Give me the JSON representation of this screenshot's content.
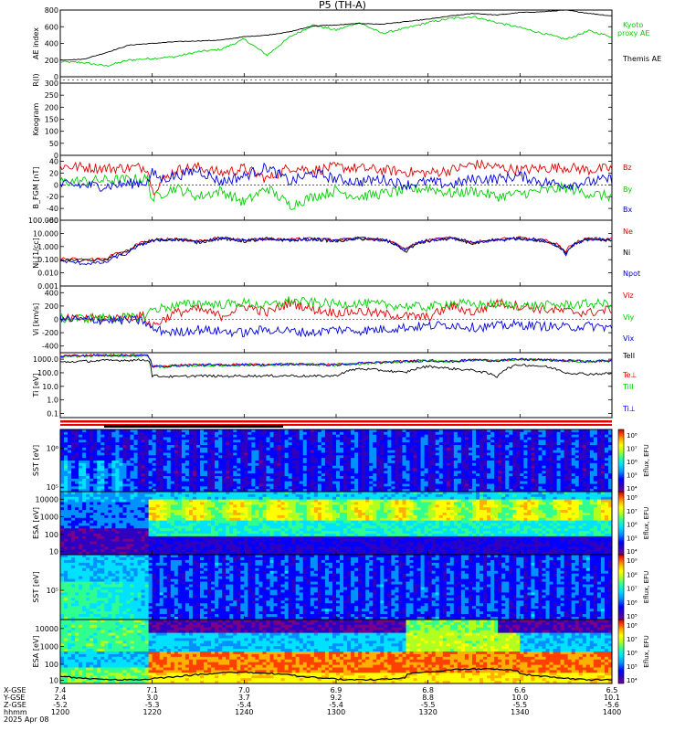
{
  "title": "P5 (TH-A)",
  "colors": {
    "black": "#000000",
    "green": "#00d000",
    "red": "#e00000",
    "blue": "#0000e0",
    "cmap": [
      "#7a008a",
      "#3000c0",
      "#0000ff",
      "#0090ff",
      "#00e0ff",
      "#30ff90",
      "#b0ff20",
      "#ffff00",
      "#ffb000",
      "#ff4000",
      "#c00000"
    ]
  },
  "chart_data": [
    {
      "type": "line",
      "panel": "ae",
      "ylabel": "AE index",
      "ylim": [
        0,
        800
      ],
      "yticks": [
        "800",
        "600",
        "400",
        "200",
        "0"
      ],
      "x_minutes": [
        0,
        5,
        10,
        15,
        20,
        25,
        30,
        35,
        40,
        45,
        50,
        55,
        60,
        65,
        70,
        75,
        80,
        85,
        90,
        95,
        100,
        105,
        110,
        115,
        120
      ],
      "series": [
        {
          "name": "Kyoto proxy AE",
          "color": "green",
          "values": [
            180,
            170,
            130,
            200,
            220,
            240,
            300,
            330,
            450,
            260,
            480,
            620,
            560,
            650,
            520,
            580,
            650,
            700,
            720,
            650,
            590,
            520,
            450,
            550,
            480
          ]
        },
        {
          "name": "Themis AE",
          "color": "black",
          "values": [
            200,
            210,
            290,
            380,
            400,
            420,
            430,
            440,
            480,
            500,
            540,
            610,
            620,
            640,
            630,
            660,
            690,
            730,
            760,
            740,
            770,
            780,
            800,
            760,
            730
          ]
        }
      ]
    },
    {
      "type": "line",
      "panel": "ri",
      "ylabel": "R(I)",
      "ylim": [
        0,
        1
      ],
      "yticks": [
        "1",
        "0"
      ]
    },
    {
      "type": "heatmap",
      "panel": "keo",
      "ylabel": "Keogram",
      "ylim": [
        0,
        300
      ],
      "yticks": [
        "300",
        "250",
        "200",
        "150",
        "100",
        "50",
        "0"
      ]
    },
    {
      "type": "line",
      "panel": "bfgm",
      "ylabel": "B_FGM [nT]",
      "ylim": [
        -60,
        50
      ],
      "yticks": [
        "40",
        "20",
        "0",
        "-20",
        "-40",
        "-60"
      ],
      "x_minutes": [
        0,
        10,
        19,
        20,
        22,
        25,
        30,
        35,
        40,
        45,
        50,
        55,
        60,
        65,
        70,
        75,
        80,
        85,
        90,
        95,
        100,
        105,
        110,
        115,
        120
      ],
      "series": [
        {
          "name": "Bz",
          "color": "red",
          "values": [
            32,
            28,
            30,
            -10,
            5,
            25,
            30,
            20,
            28,
            10,
            30,
            25,
            30,
            28,
            25,
            22,
            20,
            25,
            35,
            30,
            25,
            28,
            30,
            25,
            28
          ]
        },
        {
          "name": "By",
          "color": "green",
          "values": [
            5,
            8,
            10,
            -25,
            -15,
            -5,
            -20,
            -10,
            -30,
            -5,
            -35,
            -20,
            -10,
            -20,
            -15,
            -10,
            -5,
            -15,
            -10,
            -20,
            -15,
            -10,
            -5,
            -15,
            -20
          ]
        },
        {
          "name": "Bx",
          "color": "blue",
          "values": [
            0,
            -2,
            5,
            20,
            10,
            15,
            25,
            5,
            15,
            30,
            5,
            20,
            10,
            5,
            10,
            0,
            5,
            0,
            10,
            10,
            15,
            5,
            0,
            5,
            10
          ]
        }
      ]
    },
    {
      "type": "line",
      "panel": "ni",
      "ylabel": "Ni [1/cc]",
      "yscale": "log",
      "ylim": [
        0.001,
        100
      ],
      "yticks": [
        "100.000",
        "10.000",
        "1.000",
        "0.100",
        "0.010",
        "0.001"
      ],
      "x_minutes": [
        0,
        5,
        10,
        15,
        18,
        20,
        25,
        30,
        35,
        40,
        45,
        50,
        55,
        60,
        65,
        70,
        75,
        80,
        85,
        90,
        95,
        100,
        105,
        110,
        115,
        120
      ],
      "series": [
        {
          "name": "Ne",
          "color": "red",
          "values": [
            0.12,
            0.1,
            0.12,
            0.5,
            2.0,
            3.0,
            4.0,
            2.5,
            4.5,
            3.0,
            4.0,
            3.5,
            4.0,
            3.0,
            4.5,
            3.5,
            0.5,
            3.0,
            4.5,
            2.0,
            3.5,
            4.5,
            3.0,
            0.4,
            4.0,
            3.5
          ]
        },
        {
          "name": "Ni",
          "color": "black",
          "values": [
            0.1,
            0.08,
            0.1,
            0.4,
            1.8,
            2.8,
            3.5,
            2.0,
            4.0,
            2.5,
            3.5,
            3.0,
            3.5,
            2.5,
            4.0,
            3.0,
            0.3,
            2.5,
            4.0,
            1.5,
            3.0,
            4.0,
            2.5,
            0.3,
            3.5,
            3.0
          ]
        },
        {
          "name": "Npot",
          "color": "blue",
          "values": [
            0.08,
            0.05,
            0.06,
            0.3,
            1.5,
            2.5,
            3.8,
            2.2,
            4.2,
            2.8,
            3.8,
            3.2,
            3.8,
            2.8,
            4.2,
            3.2,
            0.4,
            2.8,
            4.2,
            1.8,
            3.2,
            4.2,
            2.8,
            0.2,
            3.8,
            3.2
          ]
        }
      ]
    },
    {
      "type": "line",
      "panel": "vi",
      "ylabel": "Vi [km/s]",
      "ylim": [
        -500,
        500
      ],
      "yticks": [
        "400",
        "200",
        "0",
        "-200",
        "-400"
      ],
      "x_minutes": [
        0,
        10,
        18,
        20,
        25,
        30,
        35,
        40,
        45,
        50,
        55,
        60,
        65,
        70,
        75,
        80,
        85,
        90,
        95,
        100,
        105,
        110,
        115,
        120
      ],
      "series": [
        {
          "name": "Viz",
          "color": "red",
          "values": [
            0,
            20,
            50,
            -100,
            100,
            150,
            50,
            200,
            100,
            250,
            150,
            100,
            120,
            80,
            50,
            30,
            200,
            100,
            250,
            200,
            150,
            120,
            100,
            150
          ]
        },
        {
          "name": "Viy",
          "color": "green",
          "values": [
            10,
            20,
            30,
            150,
            200,
            250,
            220,
            250,
            200,
            280,
            250,
            230,
            240,
            220,
            200,
            180,
            250,
            220,
            230,
            200,
            210,
            220,
            230,
            240
          ]
        },
        {
          "name": "Vix",
          "color": "blue",
          "values": [
            0,
            -10,
            -20,
            -150,
            -200,
            -150,
            -180,
            -200,
            -150,
            -180,
            -200,
            -150,
            -170,
            -150,
            -120,
            -100,
            -80,
            -120,
            -100,
            -80,
            -100,
            -120,
            -100,
            -120
          ]
        }
      ]
    },
    {
      "type": "line",
      "panel": "ti",
      "ylabel": "Ti [eV]",
      "yscale": "log",
      "ylim": [
        0.05,
        3000
      ],
      "yticks": [
        "1000.0",
        "100.0",
        "10.0",
        "1.0",
        "0.1"
      ],
      "x_minutes": [
        0,
        10,
        19,
        20,
        25,
        30,
        35,
        40,
        45,
        50,
        55,
        60,
        65,
        70,
        75,
        80,
        85,
        90,
        95,
        100,
        105,
        110,
        115,
        120
      ],
      "series": [
        {
          "name": "TeII",
          "color": "black",
          "values": [
            600,
            800,
            900,
            60,
            50,
            60,
            55,
            60,
            58,
            62,
            55,
            60,
            200,
            150,
            100,
            300,
            200,
            150,
            50,
            400,
            300,
            100,
            80,
            90
          ]
        },
        {
          "name": "Te⊥",
          "color": "red",
          "values": [
            1800,
            2000,
            2000,
            300,
            350,
            400,
            380,
            420,
            400,
            450,
            420,
            400,
            500,
            600,
            700,
            800,
            700,
            900,
            800,
            1000,
            900,
            800,
            700,
            800
          ]
        },
        {
          "name": "TiII",
          "color": "green",
          "values": [
            1500,
            1800,
            1800,
            250,
            300,
            350,
            330,
            380,
            350,
            400,
            380,
            350,
            450,
            550,
            650,
            750,
            650,
            850,
            750,
            950,
            850,
            750,
            650,
            750
          ]
        },
        {
          "name": "Ti⊥",
          "color": "blue",
          "values": [
            1700,
            1900,
            1900,
            280,
            330,
            380,
            360,
            400,
            380,
            430,
            400,
            380,
            480,
            580,
            680,
            780,
            680,
            880,
            780,
            980,
            880,
            780,
            680,
            780
          ]
        }
      ]
    },
    {
      "type": "heatmap",
      "panel": "sst_i",
      "ylabel": "SST [eV]",
      "yscale": "log",
      "yticks": [
        "10⁶",
        "10⁵"
      ],
      "cbar_label": "Eflux, EFU",
      "cbar_ticks": [
        "10⁸",
        "10⁷",
        "10⁶",
        "10⁵",
        "10⁴"
      ]
    },
    {
      "type": "heatmap",
      "panel": "esa_i",
      "ylabel": "ESA [eV]",
      "yscale": "log",
      "yticks": [
        "10000",
        "1000",
        "100",
        "10"
      ],
      "cbar_label": "Eflux, EFU",
      "cbar_ticks": [
        "10⁸",
        "10⁷",
        "10⁶",
        "10⁵",
        "10⁴"
      ]
    },
    {
      "type": "heatmap",
      "panel": "sst_e",
      "ylabel": "SST [eV]",
      "yscale": "log",
      "yticks": [
        "10⁵"
      ],
      "cbar_label": "Eflux, EFU",
      "cbar_ticks": [
        "10⁹",
        "10⁸",
        "10⁷",
        "10⁶",
        "10⁵"
      ]
    },
    {
      "type": "heatmap",
      "panel": "esa_e",
      "ylabel": "ESA [eV]",
      "yscale": "log",
      "yticks": [
        "10000",
        "1000",
        "100",
        "10"
      ],
      "cbar_label": "Eflux, EFU",
      "cbar_ticks": [
        "10⁸",
        "10⁷",
        "10⁶",
        "10⁵",
        "10⁴"
      ]
    }
  ],
  "labels": {
    "ae_green": "Kyoto",
    "ae_green2": "proxy AE",
    "ae_black": "Themis AE",
    "b_z": "Bz",
    "b_y": "By",
    "b_x": "Bx",
    "n_e": "Ne",
    "n_i": "Ni",
    "n_pot": "Npot",
    "v_z": "Viz",
    "v_y": "Viy",
    "v_x": "Vix",
    "t_1": "TeII",
    "t_2": "Te⊥",
    "t_3": "TiII",
    "t_4": "Ti⊥"
  },
  "xaxis": {
    "row_labels": [
      "X-GSE",
      "Y-GSE",
      "Z-GSE",
      "hhmm",
      "2025 Apr 08"
    ],
    "ticks": [
      {
        "x": "7.4",
        "y": "2.4",
        "z": "-5.2",
        "t": "1200"
      },
      {
        "x": "7.1",
        "y": "3.0",
        "z": "-5.3",
        "t": "1220"
      },
      {
        "x": "7.0",
        "y": "3.7",
        "z": "-5.4",
        "t": "1240"
      },
      {
        "x": "6.9",
        "y": "9.2",
        "z": "-5.4",
        "t": "1300"
      },
      {
        "x": "6.8",
        "y": "8.8",
        "z": "-5.5",
        "t": "1320"
      },
      {
        "x": "6.6",
        "y": "10.0",
        "z": "-5.5",
        "t": "1340"
      },
      {
        "x": "6.5",
        "y": "10.1",
        "z": "-5.6",
        "t": "1400"
      }
    ]
  }
}
